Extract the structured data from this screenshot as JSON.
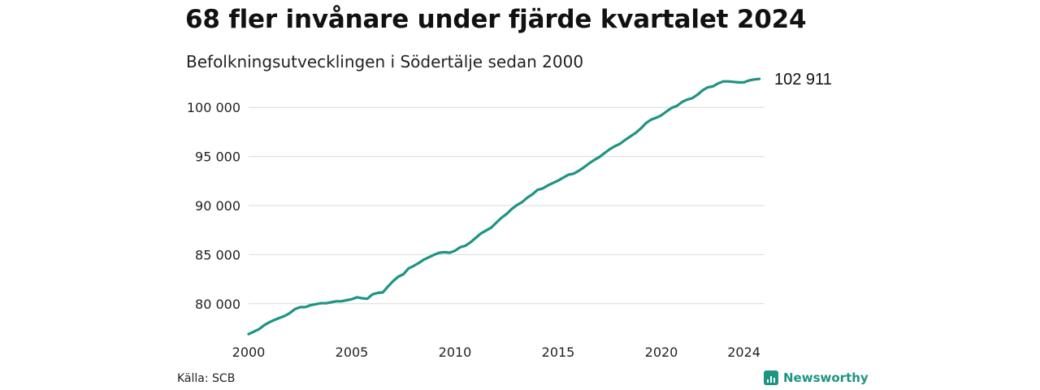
{
  "title": "68 fler invånare under fjärde kvartalet 2024",
  "subtitle": "Befolkningsutvecklingen i Södertälje sedan 2000",
  "source": "Källa: SCB",
  "brand": {
    "name": "Newsworthy",
    "icon": "bar-chart-icon",
    "color": "#1e9483"
  },
  "colors": {
    "line": "#1e9483",
    "grid": "#d9d9d9"
  },
  "chart_data": {
    "type": "line",
    "title": "68 fler invånare under fjärde kvartalet 2024",
    "subtitle": "Befolkningsutvecklingen i Södertälje sedan 2000",
    "xlabel": "",
    "ylabel": "",
    "xlim": [
      2000,
      2025
    ],
    "ylim": [
      77000,
      103000
    ],
    "grid": true,
    "y_ticks": [
      80000,
      85000,
      90000,
      95000,
      100000
    ],
    "y_tick_labels": [
      "80 000",
      "85 000",
      "90 000",
      "95 000",
      "100 000"
    ],
    "x_ticks": [
      2000,
      2005,
      2010,
      2015,
      2020,
      2024
    ],
    "x_tick_labels": [
      "2000",
      "2005",
      "2010",
      "2015",
      "2020",
      "2024"
    ],
    "end_label": "102 911",
    "series": [
      {
        "x": [
          2000.0,
          2000.25,
          2000.5,
          2000.75,
          2001.0,
          2001.25,
          2001.5,
          2001.75,
          2002.0,
          2002.25,
          2002.5,
          2002.75,
          2003.0,
          2003.25,
          2003.5,
          2003.75,
          2004.0,
          2004.25,
          2004.5,
          2004.75,
          2005.0,
          2005.25,
          2005.5,
          2005.75,
          2006.0,
          2006.25,
          2006.5,
          2006.75,
          2007.0,
          2007.25,
          2007.5,
          2007.75,
          2008.0,
          2008.25,
          2008.5,
          2008.75,
          2009.0,
          2009.25,
          2009.5,
          2009.75,
          2010.0,
          2010.25,
          2010.5,
          2010.75,
          2011.0,
          2011.25,
          2011.5,
          2011.75,
          2012.0,
          2012.25,
          2012.5,
          2012.75,
          2013.0,
          2013.25,
          2013.5,
          2013.75,
          2014.0,
          2014.25,
          2014.5,
          2014.75,
          2015.0,
          2015.25,
          2015.5,
          2015.75,
          2016.0,
          2016.25,
          2016.5,
          2016.75,
          2017.0,
          2017.25,
          2017.5,
          2017.75,
          2018.0,
          2018.25,
          2018.5,
          2018.75,
          2019.0,
          2019.25,
          2019.5,
          2019.75,
          2020.0,
          2020.25,
          2020.5,
          2020.75,
          2021.0,
          2021.25,
          2021.5,
          2021.75,
          2022.0,
          2022.25,
          2022.5,
          2022.75,
          2023.0,
          2023.25,
          2023.5,
          2023.75,
          2024.0,
          2024.25,
          2024.5,
          2024.75
        ],
        "values": [
          76900,
          77150,
          77400,
          77800,
          78100,
          78350,
          78550,
          78750,
          79050,
          79450,
          79650,
          79650,
          79850,
          79950,
          80050,
          80050,
          80150,
          80250,
          80250,
          80350,
          80450,
          80650,
          80550,
          80500,
          80950,
          81100,
          81150,
          81750,
          82300,
          82750,
          83000,
          83600,
          83850,
          84150,
          84500,
          84750,
          85000,
          85200,
          85250,
          85200,
          85400,
          85750,
          85900,
          86250,
          86700,
          87150,
          87450,
          87750,
          88250,
          88750,
          89150,
          89650,
          90050,
          90350,
          90800,
          91150,
          91600,
          91750,
          92050,
          92300,
          92550,
          92850,
          93150,
          93250,
          93550,
          93900,
          94300,
          94650,
          94950,
          95350,
          95750,
          96050,
          96300,
          96700,
          97050,
          97400,
          97850,
          98400,
          98750,
          98950,
          99200,
          99600,
          99950,
          100150,
          100550,
          100800,
          100950,
          101300,
          101750,
          102050,
          102150,
          102450,
          102650,
          102650,
          102600,
          102550,
          102550,
          102750,
          102850,
          102911
        ]
      }
    ]
  }
}
